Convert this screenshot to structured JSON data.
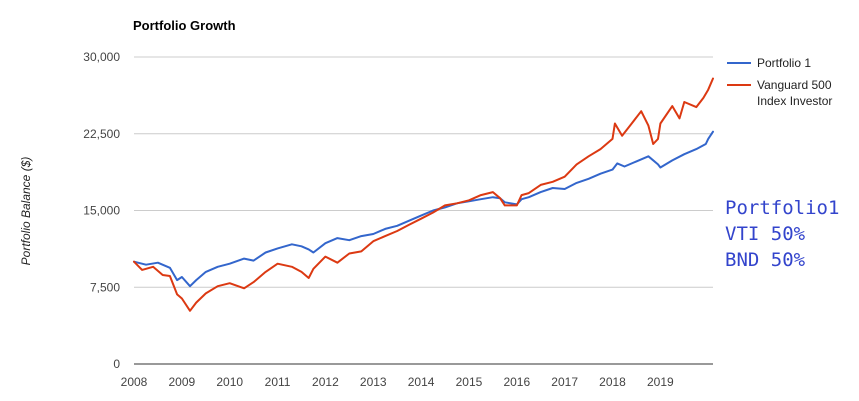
{
  "chart_data": {
    "type": "line",
    "title": "Portfolio Growth",
    "xlabel": "",
    "ylabel": "Portfolio Balance ($)",
    "ylim": [
      0,
      30000
    ],
    "y_ticks": [
      "0",
      "7,500",
      "15,000",
      "22,500",
      "30,000"
    ],
    "y_tick_values": [
      0,
      7500,
      15000,
      22500,
      30000
    ],
    "xlim": [
      2008.0,
      2020.1
    ],
    "x_ticks": [
      "2008",
      "2009",
      "2010",
      "2011",
      "2012",
      "2013",
      "2014",
      "2015",
      "2016",
      "2017",
      "2018",
      "2019"
    ],
    "grid": true,
    "legend_position": "right",
    "annotations": [
      "Portfolio1",
      "VTI  50%",
      "BND  50%"
    ],
    "series": [
      {
        "name": "Portfolio 1",
        "color": "#3366cc",
        "x": [
          2008.0,
          2008.25,
          2008.5,
          2008.75,
          2008.9,
          2009.0,
          2009.17,
          2009.3,
          2009.5,
          2009.75,
          2010.0,
          2010.3,
          2010.5,
          2010.75,
          2011.0,
          2011.3,
          2011.5,
          2011.65,
          2011.75,
          2012.0,
          2012.25,
          2012.5,
          2012.75,
          2013.0,
          2013.25,
          2013.5,
          2013.75,
          2014.0,
          2014.25,
          2014.5,
          2014.75,
          2015.0,
          2015.25,
          2015.5,
          2015.65,
          2015.75,
          2016.0,
          2016.1,
          2016.25,
          2016.5,
          2016.75,
          2017.0,
          2017.25,
          2017.5,
          2017.75,
          2018.0,
          2018.1,
          2018.25,
          2018.5,
          2018.75,
          2018.95,
          2019.0,
          2019.25,
          2019.5,
          2019.75,
          2019.95,
          2020.0,
          2020.1
        ],
        "y": [
          10000,
          9700,
          9900,
          9400,
          8200,
          8500,
          7600,
          8200,
          9000,
          9500,
          9800,
          10300,
          10100,
          10900,
          11300,
          11700,
          11500,
          11200,
          10900,
          11800,
          12300,
          12100,
          12500,
          12700,
          13200,
          13500,
          14000,
          14500,
          15000,
          15300,
          15700,
          15900,
          16100,
          16300,
          16200,
          15800,
          15600,
          16100,
          16300,
          16800,
          17200,
          17100,
          17700,
          18100,
          18600,
          19000,
          19600,
          19300,
          19800,
          20300,
          19500,
          19200,
          19900,
          20500,
          21000,
          21500,
          22000,
          22700
        ]
      },
      {
        "name": "Vanguard 500 Index Investor",
        "name_lines": [
          "Vanguard 500",
          "Index Investor"
        ],
        "color": "#dc3912",
        "x": [
          2008.0,
          2008.17,
          2008.4,
          2008.6,
          2008.75,
          2008.9,
          2009.0,
          2009.17,
          2009.3,
          2009.5,
          2009.75,
          2010.0,
          2010.3,
          2010.5,
          2010.75,
          2011.0,
          2011.3,
          2011.5,
          2011.65,
          2011.75,
          2012.0,
          2012.25,
          2012.5,
          2012.75,
          2013.0,
          2013.25,
          2013.5,
          2013.75,
          2014.0,
          2014.25,
          2014.5,
          2014.75,
          2015.0,
          2015.25,
          2015.5,
          2015.65,
          2015.75,
          2016.0,
          2016.1,
          2016.25,
          2016.5,
          2016.75,
          2017.0,
          2017.25,
          2017.5,
          2017.75,
          2018.0,
          2018.05,
          2018.2,
          2018.4,
          2018.6,
          2018.75,
          2018.85,
          2018.95,
          2019.0,
          2019.25,
          2019.4,
          2019.5,
          2019.75,
          2019.9,
          2020.0,
          2020.1
        ],
        "y": [
          10000,
          9200,
          9500,
          8700,
          8600,
          6800,
          6400,
          5200,
          6000,
          6900,
          7600,
          7900,
          7400,
          8000,
          9000,
          9800,
          9500,
          9000,
          8400,
          9300,
          10500,
          9900,
          10800,
          11000,
          12000,
          12500,
          13000,
          13600,
          14200,
          14800,
          15500,
          15700,
          16000,
          16500,
          16800,
          16200,
          15500,
          15500,
          16500,
          16700,
          17500,
          17800,
          18300,
          19500,
          20300,
          21000,
          22000,
          23500,
          22300,
          23500,
          24700,
          23300,
          21500,
          22000,
          23500,
          25200,
          24000,
          25600,
          25100,
          26000,
          26800,
          27900
        ]
      }
    ]
  }
}
